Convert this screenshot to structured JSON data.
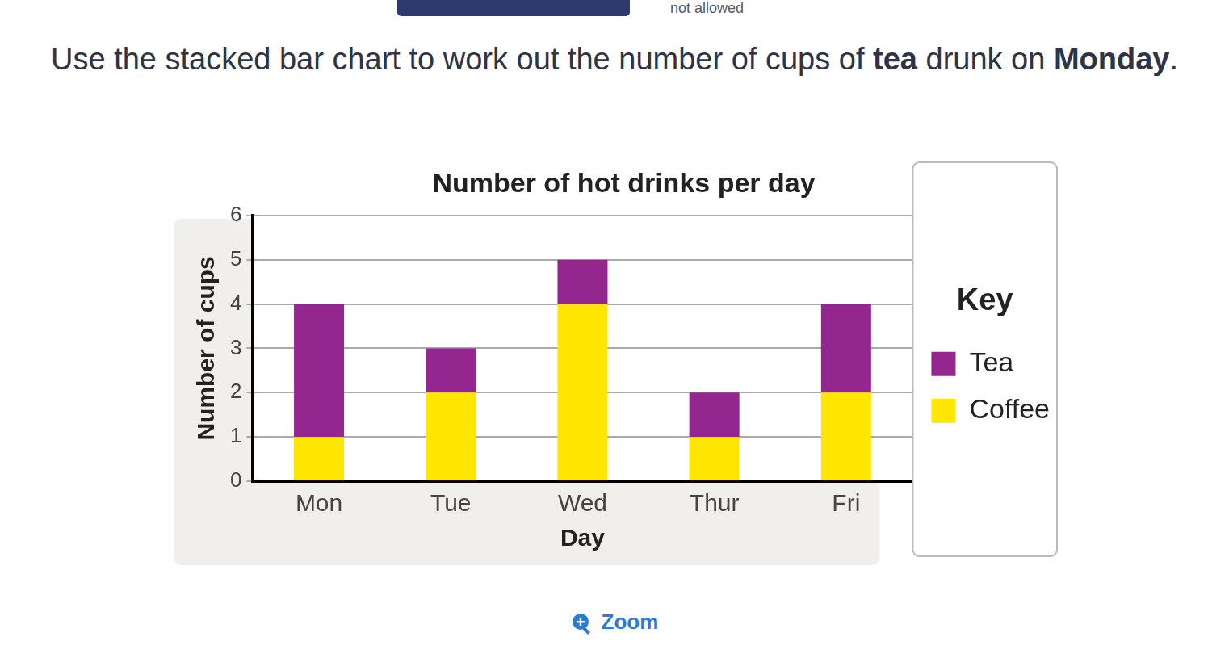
{
  "header_note": "not allowed",
  "question": [
    {
      "text": "Use the stacked bar chart to work out the number of cups of ",
      "bold": false
    },
    {
      "text": "tea",
      "bold": true
    },
    {
      "text": " drunk on ",
      "bold": false
    },
    {
      "text": "Monday",
      "bold": true
    },
    {
      "text": ".",
      "bold": false
    }
  ],
  "zoom": "Zoom",
  "chart_data": {
    "type": "bar",
    "title": "Number of hot drinks per day",
    "x_label": "Day",
    "y_label": "Number of cups",
    "categories": [
      "Mon",
      "Tue",
      "Wed",
      "Thur",
      "Fri"
    ],
    "series": [
      {
        "name": "Coffee",
        "color": "#ffe600",
        "values": [
          1,
          2,
          4,
          1,
          2
        ]
      },
      {
        "name": "Tea",
        "color": "#93278f",
        "values": [
          3,
          1,
          1,
          1,
          2
        ]
      }
    ],
    "stacked": true,
    "ylim": [
      0,
      6
    ],
    "yticks": [
      0,
      1,
      2,
      3,
      4,
      5,
      6
    ],
    "grid": true,
    "legend": "right",
    "legend_title": "Key"
  }
}
